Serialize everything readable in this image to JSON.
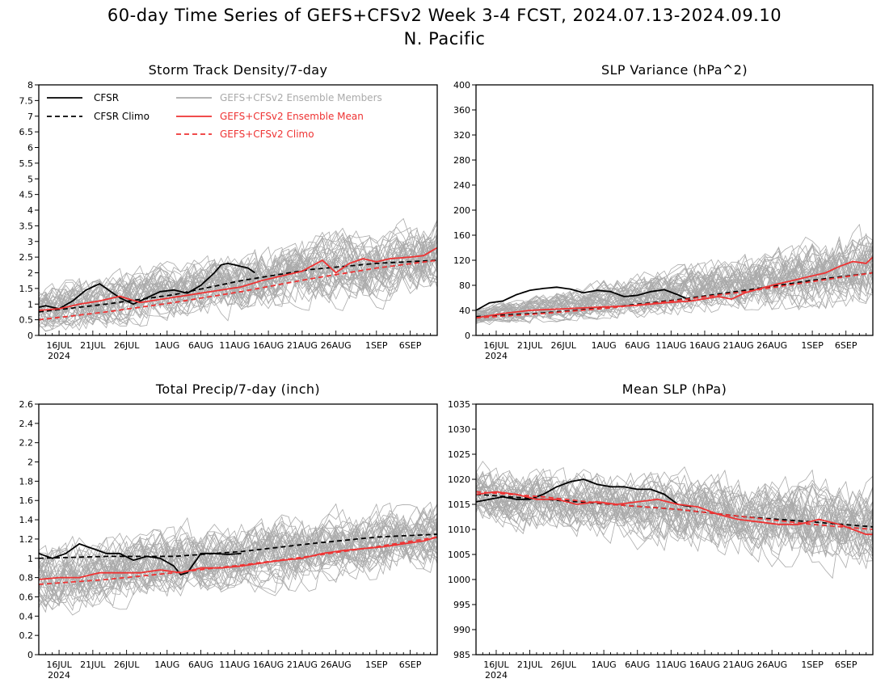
{
  "figure": {
    "title_line1": "60-day Time Series of GEFS+CFSv2 Week 3-4 FCST, 2024.07.13-2024.09.10",
    "title_line2": "N. Pacific"
  },
  "legend": {
    "cfsr": "CFSR",
    "cfsr_climo": "CFSR Climo",
    "members": "GEFS+CFSv2 Ensemble Members",
    "ens_mean": "GEFS+CFSv2 Ensemble Mean",
    "gefs_climo": "GEFS+CFSv2 Climo"
  },
  "colors": {
    "cfsr": "#000000",
    "ens_mean": "#ee3333",
    "members": "#aaaaaa",
    "gefs_climo": "#ee3333"
  },
  "x_axis": {
    "labels": [
      "16JUL",
      "21JUL",
      "26JUL",
      "1AUG",
      "6AUG",
      "11AUG",
      "16AUG",
      "21AUG",
      "26AUG",
      "1SEP",
      "6SEP"
    ],
    "label_days": [
      3,
      8,
      13,
      19,
      24,
      29,
      34,
      39,
      44,
      50,
      55
    ],
    "year": "2024",
    "ndays": 60
  },
  "chart_data": [
    {
      "type": "line",
      "title": "Storm Track Density/7-day",
      "ylim": [
        0,
        8
      ],
      "yticks": [
        "0",
        "0.5",
        "1",
        "1.5",
        "2",
        "2.5",
        "3",
        "3.5",
        "4",
        "4.5",
        "5",
        "5.5",
        "6",
        "6.5",
        "7",
        "7.5",
        "8"
      ],
      "ytick_values": [
        0,
        0.5,
        1,
        1.5,
        2,
        2.5,
        3,
        3.5,
        4,
        4.5,
        5,
        5.5,
        6,
        6.5,
        7,
        7.5,
        8
      ],
      "legend": true,
      "members_band": {
        "lo_start": 0.2,
        "lo_end": 1.2,
        "hi_start": 1.6,
        "hi_end": 3.8,
        "center_start": 0.85,
        "center_end": 2.5,
        "spread_start": 0.55,
        "spread_end": 0.85
      },
      "series": [
        {
          "name": "CFSR",
          "style": "solid",
          "color": "#000000",
          "x": [
            0,
            1,
            3,
            5,
            7,
            9,
            10,
            11,
            12,
            14,
            16,
            18,
            20,
            22,
            24,
            25,
            26,
            27,
            28,
            29,
            30,
            31,
            32
          ],
          "values": [
            0.9,
            0.95,
            0.85,
            1.1,
            1.45,
            1.65,
            1.5,
            1.35,
            1.2,
            1.0,
            1.2,
            1.4,
            1.45,
            1.35,
            1.6,
            1.8,
            2.0,
            2.25,
            2.3,
            2.25,
            2.2,
            2.15,
            2.0
          ]
        },
        {
          "name": "CFSR Climo",
          "style": "dashed",
          "color": "#000000",
          "x": [
            0,
            10,
            20,
            30,
            40,
            50,
            59
          ],
          "values": [
            0.75,
            1.0,
            1.3,
            1.75,
            2.1,
            2.3,
            2.4
          ]
        },
        {
          "name": "GEFS+CFSv2 Ensemble Mean",
          "style": "solid",
          "color": "#ee3333",
          "x": [
            0,
            3,
            6,
            9,
            12,
            15,
            18,
            21,
            24,
            27,
            30,
            33,
            36,
            39,
            42,
            44,
            46,
            48,
            50,
            52,
            55,
            57,
            59
          ],
          "values": [
            0.8,
            0.85,
            1.0,
            1.1,
            1.25,
            1.05,
            1.15,
            1.25,
            1.35,
            1.45,
            1.55,
            1.75,
            1.9,
            2.05,
            2.4,
            2.0,
            2.3,
            2.45,
            2.35,
            2.45,
            2.5,
            2.55,
            2.8
          ]
        },
        {
          "name": "GEFS+CFSv2 Climo",
          "style": "dashed",
          "color": "#ee3333",
          "x": [
            0,
            10,
            20,
            30,
            40,
            50,
            59
          ],
          "values": [
            0.5,
            0.75,
            1.05,
            1.4,
            1.8,
            2.15,
            2.4
          ]
        }
      ]
    },
    {
      "type": "line",
      "title": "SLP Variance (hPa^2)",
      "ylim": [
        0,
        400
      ],
      "yticks": [
        "0",
        "40",
        "80",
        "120",
        "160",
        "200",
        "240",
        "280",
        "320",
        "360",
        "400"
      ],
      "ytick_values": [
        0,
        40,
        80,
        120,
        160,
        200,
        240,
        280,
        320,
        360,
        400
      ],
      "legend": false,
      "members_band": {
        "lo_start": 18,
        "lo_end": 60,
        "hi_start": 55,
        "hi_end": 230,
        "center_start": 30,
        "center_end": 110,
        "spread_start": 10,
        "spread_end": 45
      },
      "series": [
        {
          "name": "CFSR",
          "style": "solid",
          "color": "#000000",
          "x": [
            0,
            2,
            4,
            6,
            8,
            10,
            12,
            14,
            16,
            18,
            20,
            22,
            24,
            26,
            28,
            30,
            32
          ],
          "values": [
            40,
            52,
            55,
            65,
            72,
            75,
            77,
            74,
            68,
            72,
            70,
            62,
            64,
            70,
            73,
            65,
            55
          ]
        },
        {
          "name": "CFSR Climo",
          "style": "dashed",
          "color": "#000000",
          "x": [
            0,
            10,
            20,
            30,
            40,
            50,
            59
          ],
          "values": [
            30,
            36,
            45,
            57,
            72,
            88,
            100
          ]
        },
        {
          "name": "GEFS+CFSv2 Ensemble Mean",
          "style": "solid",
          "color": "#ee3333",
          "x": [
            0,
            4,
            8,
            12,
            16,
            20,
            24,
            28,
            32,
            36,
            38,
            40,
            44,
            48,
            50,
            52,
            54,
            56,
            58,
            59
          ],
          "values": [
            28,
            35,
            40,
            42,
            44,
            46,
            48,
            52,
            55,
            62,
            58,
            68,
            80,
            90,
            95,
            100,
            110,
            118,
            115,
            125
          ]
        },
        {
          "name": "GEFS+CFSv2 Climo",
          "style": "dashed",
          "color": "#ee3333",
          "x": [
            0,
            10,
            20,
            30,
            40,
            50,
            59
          ],
          "values": [
            28,
            35,
            44,
            56,
            70,
            86,
            100
          ]
        }
      ]
    },
    {
      "type": "line",
      "title": "Total Precip/7-day (inch)",
      "ylim": [
        0,
        2.6
      ],
      "yticks": [
        "0",
        "0.2",
        "0.4",
        "0.6",
        "0.8",
        "1",
        "1.2",
        "1.4",
        "1.6",
        "1.8",
        "2",
        "2.2",
        "2.4",
        "2.6"
      ],
      "ytick_values": [
        0,
        0.2,
        0.4,
        0.6,
        0.8,
        1,
        1.2,
        1.4,
        1.6,
        1.8,
        2,
        2.2,
        2.4,
        2.6
      ],
      "legend": false,
      "members_band": {
        "lo_start": 0.35,
        "lo_end": 0.9,
        "hi_start": 1.25,
        "hi_end": 1.65,
        "center_start": 0.8,
        "center_end": 1.25,
        "spread_start": 0.25,
        "spread_end": 0.25
      },
      "series": [
        {
          "name": "CFSR",
          "style": "solid",
          "color": "#000000",
          "x": [
            0,
            2,
            4,
            6,
            8,
            10,
            12,
            14,
            16,
            18,
            20,
            21,
            22,
            23,
            24,
            26,
            28,
            30
          ],
          "values": [
            1.05,
            1.0,
            1.05,
            1.15,
            1.1,
            1.05,
            1.05,
            0.98,
            1.02,
            1.0,
            0.92,
            0.83,
            0.85,
            0.95,
            1.05,
            1.05,
            1.04,
            1.05
          ]
        },
        {
          "name": "CFSR Climo",
          "style": "dashed",
          "color": "#000000",
          "x": [
            0,
            10,
            20,
            30,
            40,
            50,
            59
          ],
          "values": [
            1.0,
            1.02,
            1.02,
            1.07,
            1.15,
            1.22,
            1.25
          ]
        },
        {
          "name": "GEFS+CFSv2 Ensemble Mean",
          "style": "solid",
          "color": "#ee3333",
          "x": [
            0,
            3,
            6,
            9,
            12,
            15,
            18,
            21,
            24,
            27,
            30,
            33,
            36,
            39,
            42,
            45,
            48,
            51,
            54,
            57,
            59
          ],
          "values": [
            0.78,
            0.8,
            0.8,
            0.85,
            0.85,
            0.85,
            0.88,
            0.85,
            0.9,
            0.9,
            0.92,
            0.95,
            0.98,
            1.0,
            1.05,
            1.08,
            1.1,
            1.12,
            1.15,
            1.18,
            1.22
          ]
        },
        {
          "name": "GEFS+CFSv2 Climo",
          "style": "dashed",
          "color": "#ee3333",
          "x": [
            0,
            10,
            20,
            30,
            40,
            50,
            59
          ],
          "values": [
            0.73,
            0.78,
            0.85,
            0.93,
            1.02,
            1.12,
            1.22
          ]
        }
      ]
    },
    {
      "type": "line",
      "title": "Mean SLP (hPa)",
      "ylim": [
        985,
        1035
      ],
      "yticks": [
        "985",
        "990",
        "995",
        "1000",
        "1005",
        "1010",
        "1015",
        "1020",
        "1025",
        "1030",
        "1035"
      ],
      "ytick_values": [
        985,
        990,
        995,
        1000,
        1005,
        1010,
        1015,
        1020,
        1025,
        1030,
        1035
      ],
      "legend": false,
      "members_band": {
        "lo_start": 1010,
        "lo_end": 1000,
        "hi_start": 1023,
        "hi_end": 1020,
        "center_start": 1017,
        "center_end": 1010.5,
        "spread_start": 4,
        "spread_end": 6
      },
      "series": [
        {
          "name": "CFSR",
          "style": "solid",
          "color": "#000000",
          "x": [
            0,
            2,
            4,
            6,
            8,
            10,
            12,
            14,
            16,
            18,
            20,
            22,
            24,
            26,
            28,
            30,
            32
          ],
          "values": [
            1015.5,
            1016,
            1016.5,
            1016,
            1016,
            1017,
            1018.5,
            1019.5,
            1020,
            1019,
            1018.5,
            1018.5,
            1018,
            1018,
            1017,
            1015,
            1014.5
          ]
        },
        {
          "name": "CFSR Climo",
          "style": "dashed",
          "color": "#000000",
          "x": [
            0,
            10,
            20,
            30,
            40,
            50,
            59
          ],
          "values": [
            1017,
            1016,
            1015,
            1014,
            1012.5,
            1011.5,
            1010.5
          ]
        },
        {
          "name": "GEFS+CFSv2 Ensemble Mean",
          "style": "solid",
          "color": "#ee3333",
          "x": [
            0,
            3,
            6,
            9,
            12,
            15,
            18,
            21,
            24,
            27,
            30,
            33,
            36,
            39,
            42,
            45,
            48,
            51,
            54,
            56,
            58,
            59
          ],
          "values": [
            1017,
            1017.5,
            1017,
            1016,
            1016,
            1015,
            1015.5,
            1015,
            1015.5,
            1016,
            1015,
            1014.5,
            1013,
            1012,
            1011.5,
            1011,
            1011,
            1012,
            1011,
            1010,
            1009,
            1009
          ]
        },
        {
          "name": "GEFS+CFSv2 Climo",
          "style": "dashed",
          "color": "#ee3333",
          "x": [
            0,
            10,
            20,
            30,
            40,
            50,
            59
          ],
          "values": [
            1017.5,
            1016.5,
            1015,
            1014,
            1012.5,
            1011,
            1010
          ]
        }
      ]
    }
  ]
}
